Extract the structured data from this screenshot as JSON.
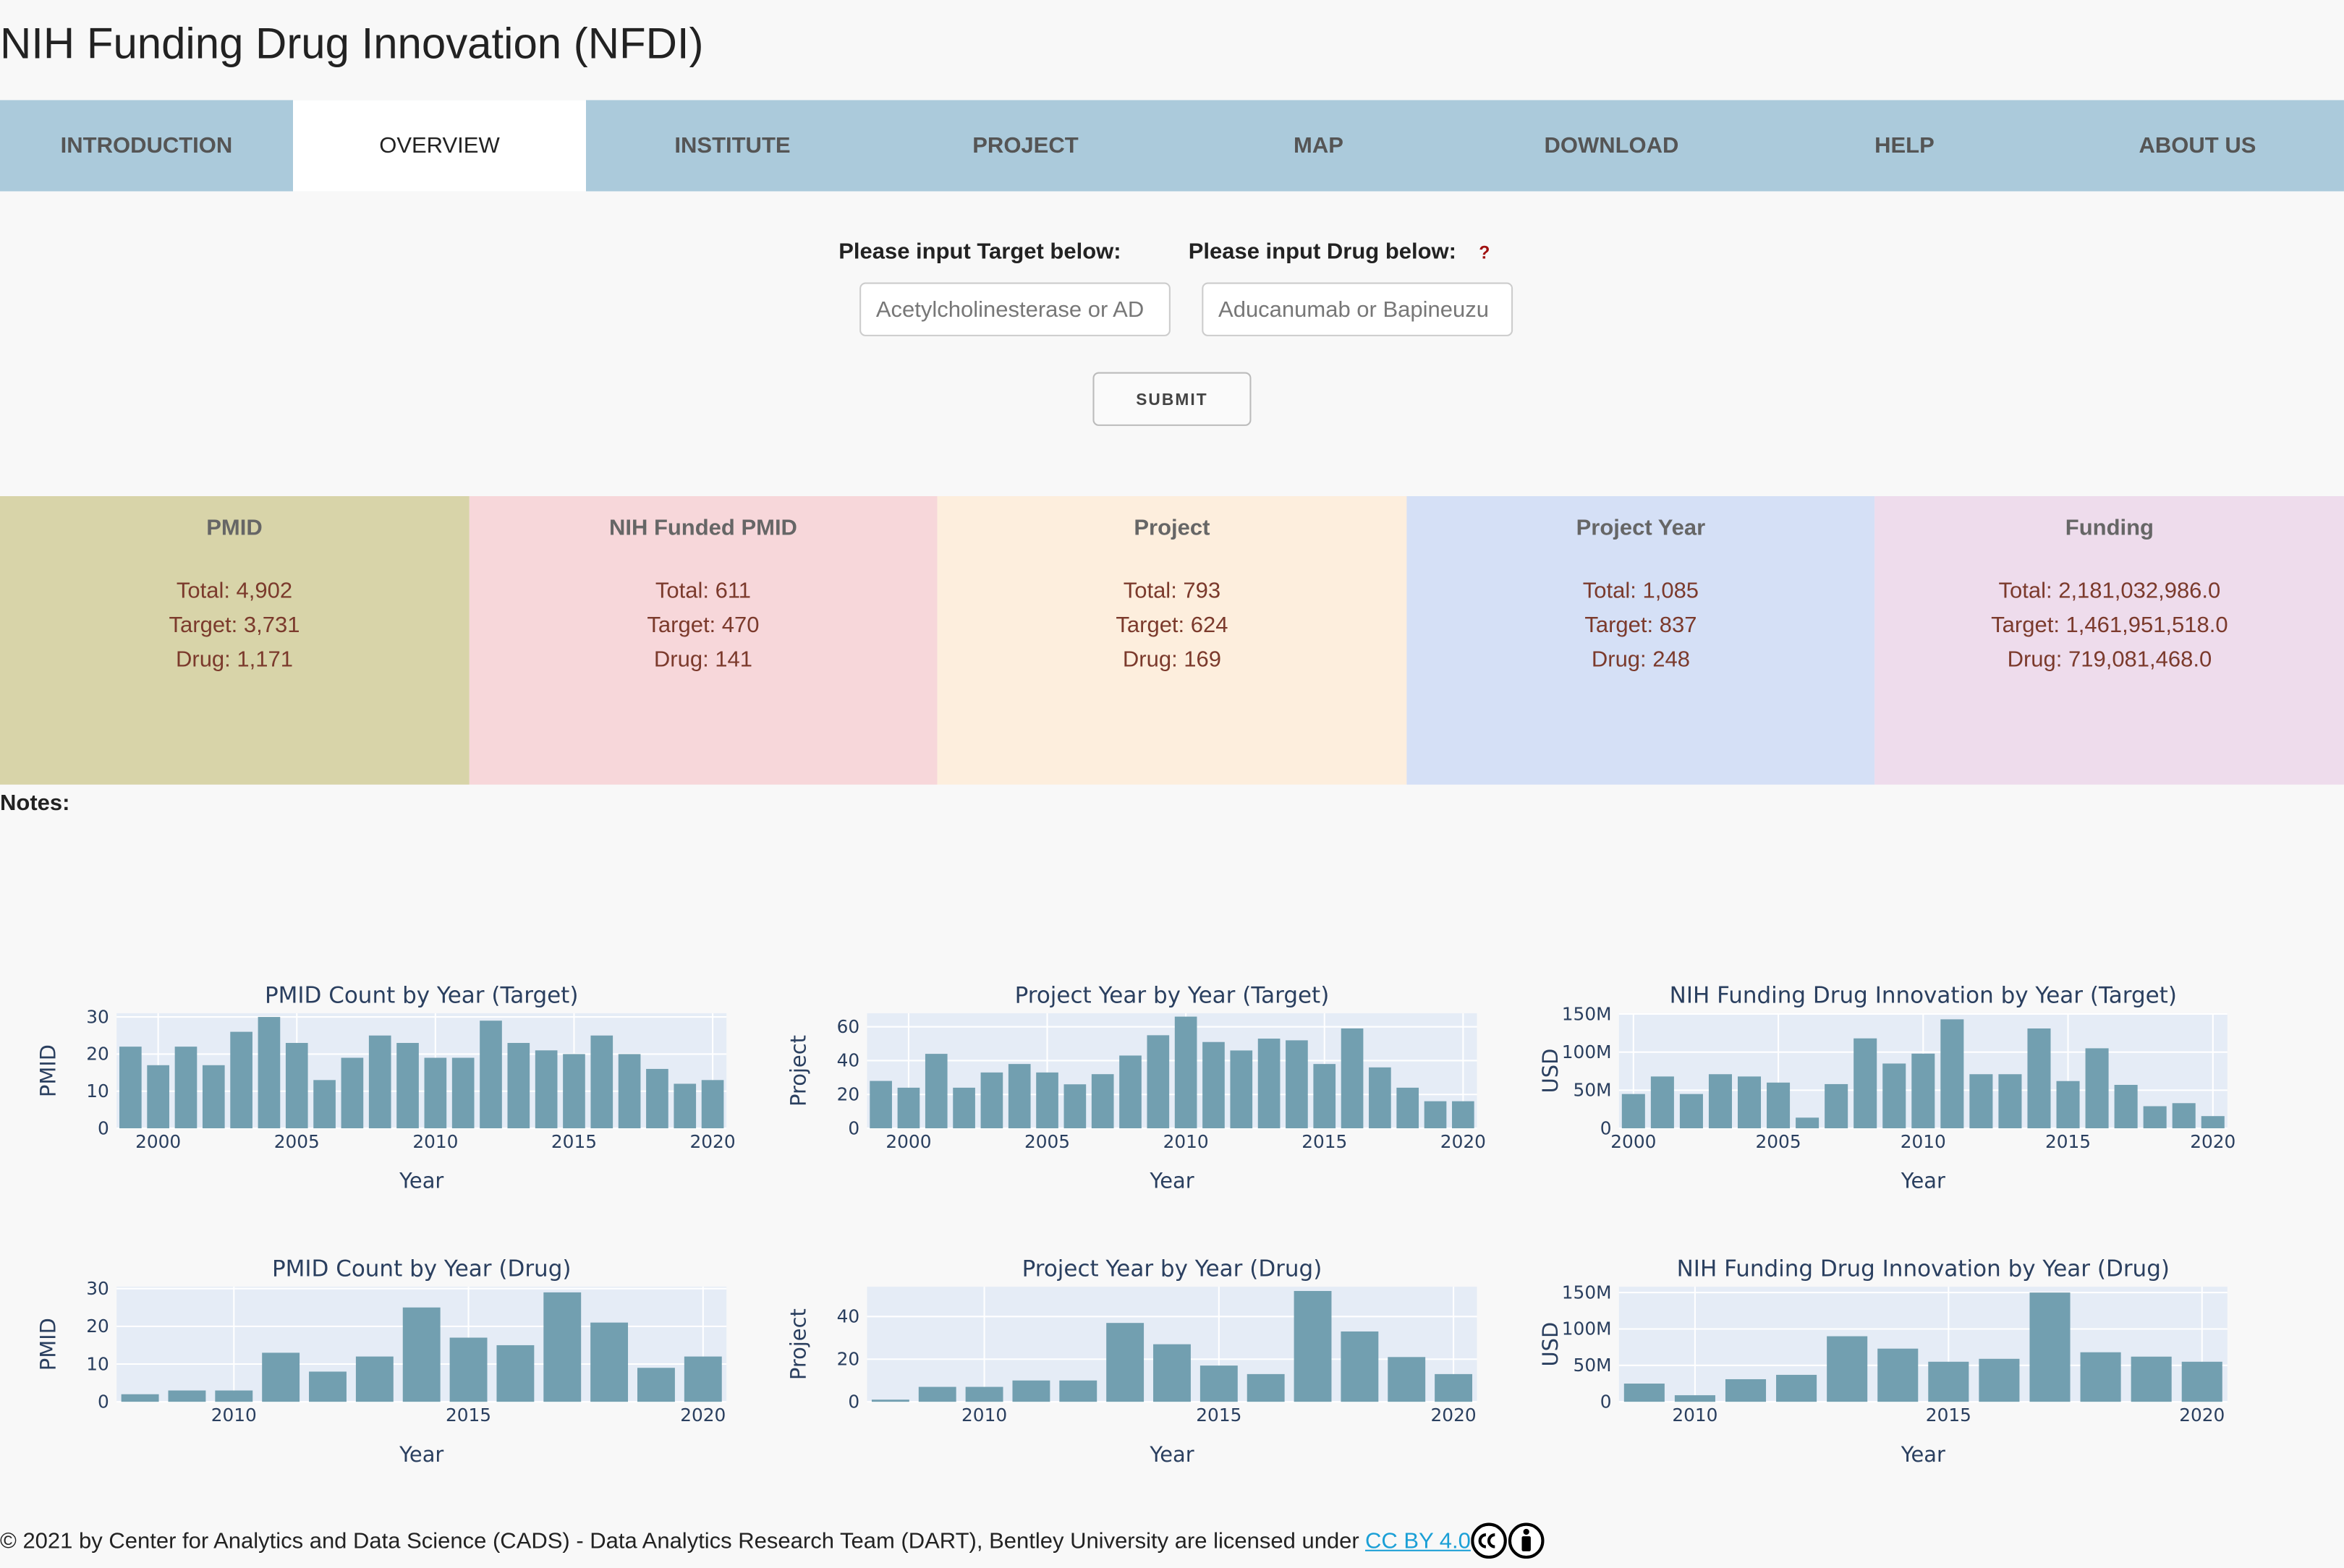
{
  "header": {
    "title": "NIH Funding Drug Innovation (NFDI)"
  },
  "nav": {
    "tabs": [
      "INTRODUCTION",
      "OVERVIEW",
      "INSTITUTE",
      "PROJECT",
      "MAP",
      "DOWNLOAD",
      "HELP",
      "ABOUT US"
    ]
  },
  "form": {
    "target_label": "Please input Target below:",
    "drug_label": "Please input Drug below:",
    "help_icon": "?",
    "target_placeholder": "Acetylcholinesterase or AD",
    "drug_placeholder": "Aducanumab or Bapineuzu",
    "submit": "SUBMIT"
  },
  "cards": [
    {
      "title": "PMID",
      "lines": [
        "Total: 4,902",
        "Target: 3,731",
        "Drug: 1,171"
      ]
    },
    {
      "title": "NIH Funded PMID",
      "lines": [
        "Total: 611",
        "Target: 470",
        "Drug: 141"
      ]
    },
    {
      "title": "Project",
      "lines": [
        "Total: 793",
        "Target: 624",
        "Drug: 169"
      ]
    },
    {
      "title": "Project Year",
      "lines": [
        "Total: 1,085",
        "Target: 837",
        "Drug: 248"
      ]
    },
    {
      "title": "Funding",
      "lines": [
        "Total: 2,181,032,986.0",
        "Target: 1,461,951,518.0",
        "Drug: 719,081,468.0"
      ]
    }
  ],
  "notes": "Notes:",
  "chart_data": [
    {
      "type": "bar",
      "title": "PMID Count by Year (Target)",
      "x_label": "Year",
      "y_label": "PMID",
      "color": "#729fb0",
      "x": [
        1999,
        2000,
        2001,
        2002,
        2003,
        2004,
        2005,
        2006,
        2007,
        2008,
        2009,
        2010,
        2011,
        2012,
        2013,
        2014,
        2015,
        2016,
        2017,
        2018,
        2019,
        2020
      ],
      "values": [
        22,
        17,
        22,
        17,
        26,
        30,
        23,
        13,
        19,
        25,
        23,
        19,
        19,
        29,
        23,
        21,
        20,
        25,
        20,
        16,
        12,
        13
      ],
      "xlim": [
        1998.5,
        2020.5
      ],
      "xticks": [
        2000,
        2005,
        2010,
        2015,
        2020
      ],
      "ylim": [
        0,
        31
      ],
      "yticks": [
        0,
        10,
        20,
        30
      ]
    },
    {
      "type": "bar",
      "title": "Project Year by Year (Target)",
      "x_label": "Year",
      "y_label": "Project",
      "color": "#729fb0",
      "x": [
        1999,
        2000,
        2001,
        2002,
        2003,
        2004,
        2005,
        2006,
        2007,
        2008,
        2009,
        2010,
        2011,
        2012,
        2013,
        2014,
        2015,
        2016,
        2017,
        2018,
        2019,
        2020
      ],
      "values": [
        28,
        24,
        44,
        24,
        33,
        38,
        33,
        26,
        32,
        43,
        55,
        66,
        51,
        46,
        53,
        52,
        38,
        59,
        36,
        24,
        16,
        16
      ],
      "xlim": [
        1998.5,
        2020.5
      ],
      "xticks": [
        2000,
        2005,
        2010,
        2015,
        2020
      ],
      "ylim": [
        0,
        68
      ],
      "yticks": [
        0,
        20,
        40,
        60
      ]
    },
    {
      "type": "bar",
      "title": "NIH Funding Drug Innovation by Year (Target)",
      "x_label": "Year",
      "y_label": "USD",
      "color": "#729fb0",
      "x": [
        2000,
        2001,
        2002,
        2003,
        2004,
        2005,
        2006,
        2007,
        2008,
        2009,
        2010,
        2011,
        2012,
        2013,
        2014,
        2015,
        2016,
        2017,
        2018,
        2019,
        2020
      ],
      "values": [
        45000000,
        68000000,
        45000000,
        71000000,
        68000000,
        60000000,
        14000000,
        58000000,
        118000000,
        85000000,
        98000000,
        143000000,
        71000000,
        71000000,
        131000000,
        62000000,
        105000000,
        57000000,
        29000000,
        33000000,
        16000000
      ],
      "xlim": [
        1999.5,
        2020.5
      ],
      "xticks": [
        2000,
        2005,
        2010,
        2015,
        2020
      ],
      "ylim": [
        0,
        151000000
      ],
      "yticks": [
        0,
        {
          "value": 50000000,
          "label": "50M"
        },
        {
          "value": 100000000,
          "label": "100M"
        },
        {
          "value": 150000000,
          "label": "150M"
        }
      ]
    },
    {
      "type": "bar",
      "title": "PMID Count by Year (Drug)",
      "x_label": "Year",
      "y_label": "PMID",
      "color": "#729fb0",
      "x": [
        2008,
        2009,
        2010,
        2011,
        2012,
        2013,
        2014,
        2015,
        2016,
        2017,
        2018,
        2019,
        2020
      ],
      "values": [
        2,
        3,
        3,
        13,
        8,
        12,
        25,
        17,
        15,
        29,
        21,
        9,
        12
      ],
      "xlim": [
        2007.5,
        2020.5
      ],
      "xticks": [
        2010,
        2015,
        2020
      ],
      "ylim": [
        0,
        30.5
      ],
      "yticks": [
        0,
        10,
        20,
        30
      ]
    },
    {
      "type": "bar",
      "title": "Project Year by Year (Drug)",
      "x_label": "Year",
      "y_label": "Project",
      "color": "#729fb0",
      "x": [
        2008,
        2009,
        2010,
        2011,
        2012,
        2013,
        2014,
        2015,
        2016,
        2017,
        2018,
        2019,
        2020
      ],
      "values": [
        1,
        7,
        7,
        10,
        10,
        37,
        27,
        17,
        13,
        52,
        33,
        21,
        13
      ],
      "xlim": [
        2007.5,
        2020.5
      ],
      "xticks": [
        2010,
        2015,
        2020
      ],
      "ylim": [
        0,
        54
      ],
      "yticks": [
        0,
        20,
        40
      ]
    },
    {
      "type": "bar",
      "title": "NIH Funding Drug Innovation by Year (Drug)",
      "x_label": "Year",
      "y_label": "USD",
      "color": "#729fb0",
      "x": [
        2009,
        2010,
        2011,
        2012,
        2013,
        2014,
        2015,
        2016,
        2017,
        2018,
        2019,
        2020
      ],
      "values": [
        25000000,
        9000000,
        31000000,
        37000000,
        90000000,
        73000000,
        55000000,
        59000000,
        150000000,
        68000000,
        62000000,
        55000000
      ],
      "xlim": [
        2008.5,
        2020.5
      ],
      "xticks": [
        2010,
        2015,
        2020
      ],
      "ylim": [
        0,
        158000000
      ],
      "yticks": [
        0,
        {
          "value": 50000000,
          "label": "50M"
        },
        {
          "value": 100000000,
          "label": "100M"
        },
        {
          "value": 150000000,
          "label": "150M"
        }
      ]
    }
  ],
  "footer": {
    "text": "© 2021 by Center for Analytics and Data Science (CADS) - Data Analytics Research Team (DART), Bentley University are licensed under",
    "link": "CC BY 4.0"
  }
}
